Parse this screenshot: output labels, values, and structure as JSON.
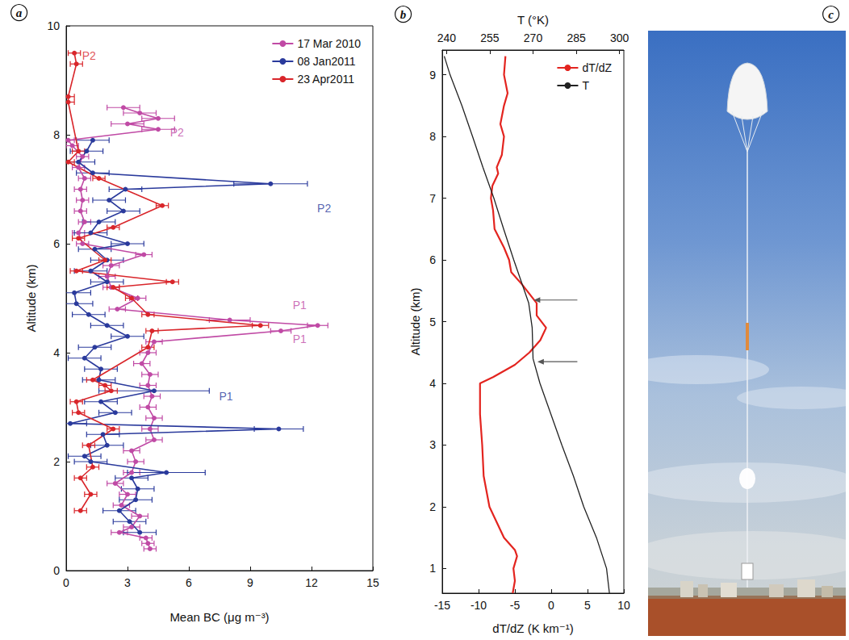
{
  "chart_data": [
    {
      "type": "line",
      "panel_label": "a",
      "xlabel": "Mean BC (μg m⁻³)",
      "ylabel": "Altitude (km)",
      "xlim": [
        0,
        15
      ],
      "xticks": [
        0,
        3,
        6,
        9,
        12,
        15
      ],
      "ylim": [
        0,
        10
      ],
      "yticks": [
        0,
        2,
        4,
        6,
        8,
        10
      ],
      "grid": false,
      "legend": "top-right",
      "marker": "circle",
      "line_style": "solid",
      "series": [
        {
          "name": "17 Mar 2010",
          "color": "#c04aa5",
          "y": [
            0.4,
            0.5,
            0.6,
            0.7,
            0.8,
            1.0,
            1.2,
            1.4,
            1.6,
            1.8,
            2.0,
            2.2,
            2.4,
            2.6,
            2.8,
            3.0,
            3.2,
            3.4,
            3.6,
            3.8,
            4.0,
            4.2,
            4.4,
            4.5,
            4.6,
            4.8,
            5.0,
            5.2,
            5.4,
            5.6,
            5.8,
            6.0,
            6.2,
            6.4,
            6.6,
            6.8,
            7.0,
            7.2,
            7.4,
            7.6,
            7.8,
            7.9,
            8.1,
            8.2,
            8.3,
            8.4,
            8.5
          ],
          "x": [
            4.1,
            4.0,
            3.9,
            2.6,
            3.2,
            3.6,
            2.7,
            3.0,
            2.4,
            3.2,
            3.4,
            3.2,
            4.3,
            4.1,
            4.3,
            4.0,
            4.2,
            4.0,
            4.1,
            3.7,
            4.0,
            4.3,
            10.5,
            12.3,
            8.0,
            2.5,
            3.5,
            2.2,
            2.0,
            2.2,
            3.8,
            0.8,
            0.6,
            0.9,
            0.7,
            0.8,
            0.7,
            0.9,
            0.6,
            0.8,
            0.3,
            0.1,
            4.5,
            3.0,
            4.5,
            3.6,
            2.8
          ],
          "xerr": [
            0.3,
            0.3,
            0.3,
            0.4,
            0.4,
            0.4,
            0.4,
            0.4,
            0.4,
            0.4,
            0.4,
            0.4,
            0.4,
            0.4,
            0.4,
            0.4,
            0.4,
            0.4,
            0.4,
            0.4,
            0.4,
            0.4,
            0.5,
            0.5,
            1.0,
            0.4,
            0.4,
            0.4,
            0.4,
            0.4,
            0.4,
            0.3,
            0.3,
            0.3,
            0.3,
            0.3,
            0.3,
            0.3,
            0.3,
            0.3,
            0.3,
            0.3,
            0.8,
            0.8,
            0.8,
            0.8,
            0.8
          ]
        },
        {
          "name": "08 Jan2011",
          "color": "#2a3a9c",
          "y": [
            0.7,
            0.9,
            1.1,
            1.3,
            1.5,
            1.7,
            1.8,
            2.0,
            2.1,
            2.3,
            2.5,
            2.6,
            2.7,
            2.9,
            3.1,
            3.3,
            3.5,
            3.7,
            3.9,
            4.1,
            4.3,
            4.5,
            4.7,
            4.9,
            5.1,
            5.3,
            5.5,
            5.7,
            5.9,
            6.0,
            6.2,
            6.4,
            6.6,
            6.8,
            7.0,
            7.1,
            7.3,
            7.5,
            7.7,
            7.9
          ],
          "x": [
            3.6,
            3.1,
            2.6,
            3.4,
            3.5,
            3.2,
            4.9,
            1.2,
            0.9,
            2.0,
            1.8,
            10.4,
            0.2,
            2.4,
            1.7,
            4.3,
            1.6,
            1.7,
            0.9,
            1.4,
            3.0,
            2.0,
            1.1,
            0.5,
            0.4,
            2.0,
            1.2,
            2.0,
            1.4,
            3.0,
            1.2,
            1.6,
            2.8,
            2.1,
            2.9,
            10.0,
            1.3,
            0.6,
            1.0,
            1.3
          ],
          "xerr": [
            0.8,
            0.8,
            0.8,
            0.8,
            0.8,
            0.8,
            1.9,
            0.8,
            0.8,
            0.8,
            0.8,
            1.2,
            0.8,
            0.8,
            0.8,
            2.7,
            0.8,
            0.8,
            0.8,
            0.8,
            0.8,
            0.8,
            0.8,
            0.8,
            0.8,
            0.8,
            0.8,
            0.8,
            0.8,
            0.8,
            0.8,
            0.8,
            0.8,
            0.8,
            0.8,
            1.8,
            0.8,
            0.8,
            0.8,
            0.8
          ]
        },
        {
          "name": "23 Apr2011",
          "color": "#d9262b",
          "y": [
            1.1,
            1.4,
            1.7,
            1.9,
            2.3,
            2.6,
            2.9,
            3.1,
            3.3,
            3.4,
            3.5,
            4.1,
            4.4,
            4.5,
            4.7,
            5.0,
            5.2,
            5.3,
            5.5,
            5.7,
            6.1,
            6.3,
            6.7,
            7.2,
            7.5,
            7.7,
            8.6,
            8.7,
            9.3,
            9.5
          ],
          "x": [
            0.7,
            1.2,
            0.7,
            1.3,
            1.1,
            2.3,
            0.6,
            0.5,
            2.2,
            1.9,
            1.3,
            4.0,
            4.2,
            9.5,
            4.0,
            3.2,
            2.3,
            5.2,
            0.5,
            1.9,
            0.6,
            2.3,
            4.7,
            1.6,
            0.1,
            0.6,
            0.1,
            0.1,
            0.5,
            0.4
          ],
          "xerr": [
            0.3,
            0.3,
            0.3,
            0.3,
            0.3,
            0.3,
            0.3,
            0.3,
            0.3,
            0.3,
            0.3,
            0.3,
            0.3,
            0.4,
            0.3,
            0.3,
            0.3,
            0.3,
            0.3,
            0.3,
            0.3,
            0.3,
            0.3,
            0.3,
            0.3,
            0.3,
            0.3,
            0.3,
            0.3,
            0.3
          ]
        }
      ],
      "annotations": [
        {
          "text": "P1",
          "x": 11.0,
          "y": 4.87,
          "color": "#c04aa5"
        },
        {
          "text": "P1",
          "x": 11.0,
          "y": 4.25,
          "color": "#c04aa5"
        },
        {
          "text": "P2",
          "x": 5.0,
          "y": 8.05,
          "color": "#c04aa5"
        },
        {
          "text": "P1",
          "x": 7.4,
          "y": 3.2,
          "color": "#2a3a9c"
        },
        {
          "text": "P2",
          "x": 12.2,
          "y": 6.65,
          "color": "#2a3a9c"
        },
        {
          "text": "P2",
          "x": 0.7,
          "y": 9.45,
          "color": "#d9262b"
        }
      ]
    },
    {
      "type": "line",
      "panel_label": "b",
      "xlabel": "dT/dZ (K km⁻¹)",
      "x2label": "T (°K)",
      "ylabel": "Altitude (km)",
      "xlim": [
        -15,
        10
      ],
      "xticks": [
        -15,
        -10,
        -5,
        0,
        5,
        10
      ],
      "x2lim": [
        238.5,
        301.5
      ],
      "x2ticks": [
        240,
        255,
        270,
        285,
        300
      ],
      "ylim": [
        0.6,
        9.4
      ],
      "yticks": [
        1,
        2,
        3,
        4,
        5,
        6,
        7,
        8,
        9
      ],
      "grid": false,
      "legend": "top-right",
      "marker": "none",
      "line_style": "solid",
      "series": [
        {
          "name": "dT/dZ",
          "color": "#e3241f",
          "y": [
            0.6,
            0.8,
            1.0,
            1.2,
            1.3,
            1.5,
            2.0,
            2.5,
            3.0,
            3.5,
            4.0,
            4.1,
            4.3,
            4.5,
            4.7,
            4.9,
            5.1,
            5.3,
            5.6,
            5.8,
            6.0,
            6.2,
            6.5,
            6.8,
            7.0,
            7.2,
            7.4,
            7.5,
            7.7,
            8.0,
            8.2,
            8.5,
            8.7,
            9.0,
            9.3
          ],
          "x": [
            -5.3,
            -5.0,
            -5.2,
            -4.7,
            -5.0,
            -6.5,
            -8.5,
            -9.3,
            -9.5,
            -9.8,
            -9.8,
            -8.0,
            -5.0,
            -3.0,
            -1.5,
            -0.7,
            -2.0,
            -2.0,
            -4.0,
            -5.5,
            -5.8,
            -6.5,
            -7.8,
            -8.0,
            -8.3,
            -8.1,
            -7.3,
            -7.5,
            -6.8,
            -6.5,
            -7.0,
            -6.5,
            -6.0,
            -6.5,
            -6.3
          ]
        },
        {
          "name": "T",
          "color": "#222222",
          "axis": "x2",
          "y": [
            0.6,
            1.0,
            1.5,
            2.0,
            2.5,
            3.0,
            3.5,
            4.0,
            4.4,
            4.9,
            5.3,
            6.0,
            6.5,
            7.0,
            7.5,
            8.0,
            8.5,
            9.0,
            9.3
          ],
          "x": [
            296.5,
            295.5,
            292,
            287.6,
            284,
            280,
            276.2,
            272.4,
            270,
            269.7,
            268.5,
            263.3,
            259.8,
            256.4,
            252.6,
            249,
            245.3,
            241.2,
            239.2
          ]
        }
      ],
      "arrows": [
        {
          "from": 3.6,
          "to": -2.4,
          "y": 5.35
        },
        {
          "from": 3.6,
          "to": -1.9,
          "y": 4.35
        }
      ]
    }
  ],
  "photo": {
    "panel_label": "c"
  }
}
